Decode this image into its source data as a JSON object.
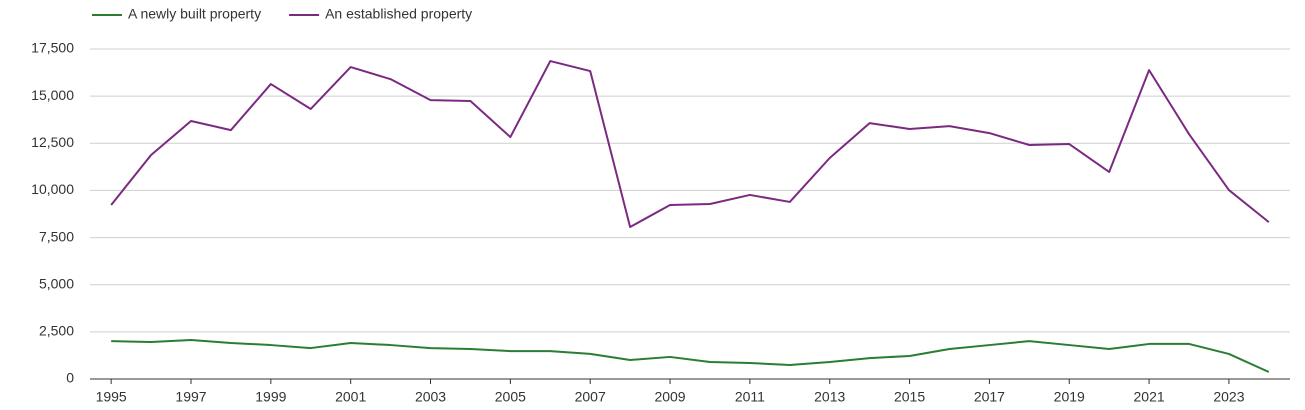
{
  "chart_data": {
    "type": "line",
    "x": [
      1995,
      1996,
      1997,
      1998,
      1999,
      2000,
      2001,
      2002,
      2003,
      2004,
      2005,
      2006,
      2007,
      2008,
      2009,
      2010,
      2011,
      2012,
      2013,
      2014,
      2015,
      2016,
      2017,
      2018,
      2019,
      2020,
      2021,
      2022,
      2023,
      2024
    ],
    "series": [
      {
        "name": "A newly built property",
        "color": "#2a7d32",
        "values": [
          2010,
          1960,
          2070,
          1910,
          1800,
          1640,
          1910,
          1800,
          1640,
          1590,
          1480,
          1480,
          1330,
          1010,
          1170,
          900,
          850,
          740,
          900,
          1110,
          1220,
          1590,
          1800,
          2010,
          1800,
          1590,
          1860,
          1860,
          1330,
          370
        ]
      },
      {
        "name": "An established property",
        "color": "#7b2a82",
        "values": [
          9230,
          11880,
          13680,
          13200,
          15640,
          14320,
          16540,
          15900,
          14790,
          14740,
          12830,
          16860,
          16330,
          8060,
          9230,
          9280,
          9760,
          9390,
          11720,
          13570,
          13260,
          13410,
          13040,
          12410,
          12460,
          10980,
          16380,
          12990,
          10020,
          8320
        ]
      }
    ],
    "xlim": [
      1994.47,
      2024.53
    ],
    "xticks": [
      1995,
      1997,
      1999,
      2001,
      2003,
      2005,
      2007,
      2009,
      2011,
      2013,
      2015,
      2017,
      2019,
      2021,
      2023
    ],
    "ylim": [
      0,
      17500
    ],
    "yticks": [
      0,
      {
        "value": 2500,
        "label": "2,500"
      },
      {
        "value": 5000,
        "label": "5,000"
      },
      {
        "value": 7500,
        "label": "7,500"
      },
      {
        "value": 10000,
        "label": "10,000"
      },
      {
        "value": 12500,
        "label": "12,500"
      },
      {
        "value": 15000,
        "label": "15,000"
      },
      {
        "value": 17500,
        "label": "17,500"
      }
    ],
    "grid": true,
    "legend": "top-left"
  }
}
